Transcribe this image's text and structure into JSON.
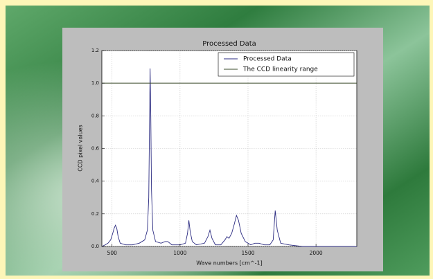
{
  "chart_data": {
    "type": "line",
    "title": "Processed Data",
    "x_label": "Wave numbers [cm^-1]",
    "y_label": "CCD pixel values",
    "xlim": [
      425,
      2300
    ],
    "ylim": [
      0,
      1.2
    ],
    "xticks": [
      500,
      1000,
      1500,
      2000
    ],
    "yticks": [
      {
        "value": 0,
        "label": "0.0"
      },
      0.2,
      0.4,
      0.6,
      0.8,
      {
        "value": 1,
        "label": "1.0"
      },
      1.2
    ],
    "grid": true,
    "legend": "upper right",
    "series": [
      {
        "name": "Processed Data",
        "color": "#2a2a80",
        "x": [
          425,
          450,
          470,
          490,
          505,
          515,
          525,
          535,
          545,
          560,
          600,
          650,
          700,
          740,
          760,
          770,
          775,
          780,
          785,
          790,
          800,
          820,
          860,
          890,
          910,
          940,
          1000,
          1040,
          1055,
          1065,
          1075,
          1090,
          1120,
          1180,
          1205,
          1220,
          1235,
          1260,
          1300,
          1330,
          1345,
          1360,
          1380,
          1400,
          1415,
          1430,
          1450,
          1480,
          1520,
          1550,
          1580,
          1620,
          1660,
          1685,
          1700,
          1715,
          1740,
          1800,
          1900,
          2000,
          2100,
          2200,
          2300
        ],
        "values": [
          0.0,
          0.01,
          0.02,
          0.04,
          0.08,
          0.11,
          0.13,
          0.11,
          0.06,
          0.02,
          0.01,
          0.01,
          0.02,
          0.04,
          0.1,
          0.3,
          0.7,
          1.09,
          0.8,
          0.35,
          0.1,
          0.03,
          0.02,
          0.03,
          0.03,
          0.01,
          0.01,
          0.02,
          0.08,
          0.16,
          0.09,
          0.03,
          0.01,
          0.02,
          0.06,
          0.1,
          0.05,
          0.01,
          0.01,
          0.04,
          0.06,
          0.05,
          0.08,
          0.14,
          0.19,
          0.16,
          0.08,
          0.03,
          0.01,
          0.02,
          0.02,
          0.01,
          0.01,
          0.04,
          0.22,
          0.1,
          0.02,
          0.01,
          0.0,
          0.0,
          0.0,
          0.0,
          0.0
        ]
      },
      {
        "name": "The CCD linearity range",
        "color": "#3a4a2a",
        "x": [
          425,
          2300
        ],
        "values": [
          1.0,
          1.0
        ]
      }
    ]
  }
}
